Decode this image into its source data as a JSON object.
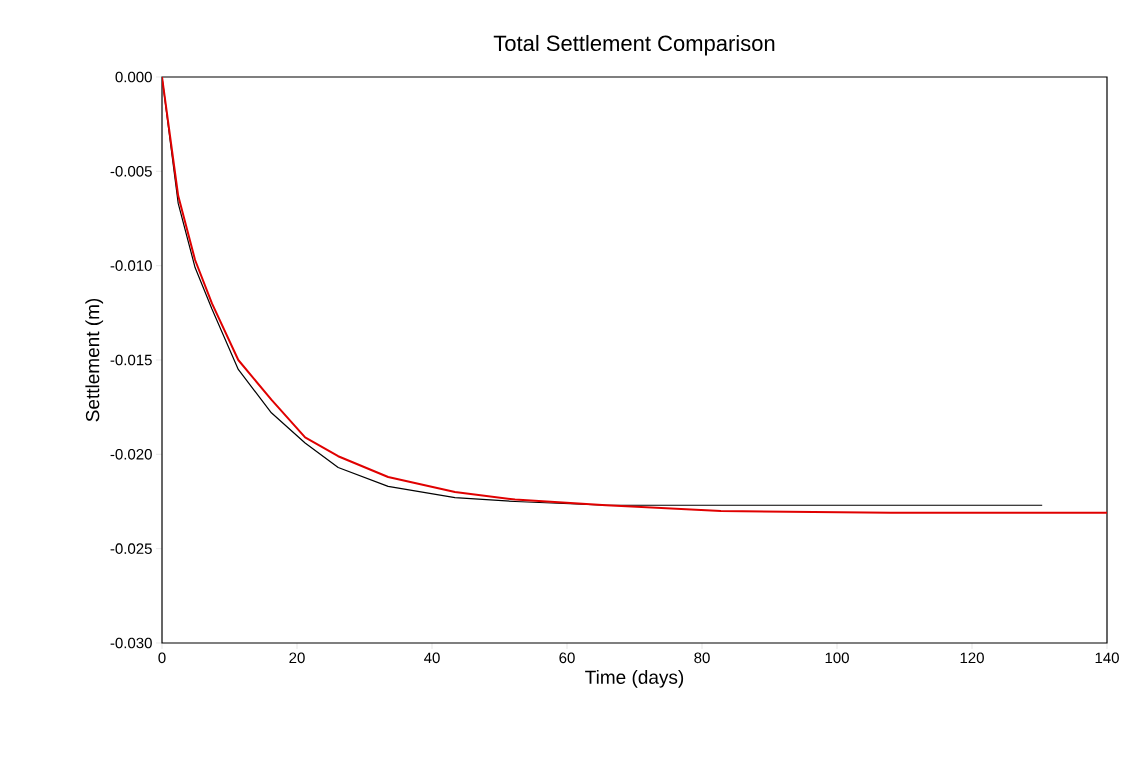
{
  "chart_data": {
    "type": "line",
    "title": "Total Settlement Comparison",
    "xlabel": "Time (days)",
    "ylabel": "Settlement (m)",
    "xlim": [
      0,
      140
    ],
    "ylim": [
      -0.03,
      0
    ],
    "xticks": [
      0,
      20,
      40,
      60,
      80,
      100,
      120,
      140
    ],
    "yticks": [
      {
        "value": 0,
        "label": "0.000"
      },
      {
        "value": -0.005,
        "label": "-0.005"
      },
      {
        "value": -0.01,
        "label": "-0.010"
      },
      {
        "value": -0.015,
        "label": "-0.015"
      },
      {
        "value": -0.02,
        "label": "-0.020"
      },
      {
        "value": -0.025,
        "label": "-0.025"
      },
      {
        "value": -0.03,
        "label": "-0.030"
      }
    ],
    "grid": false,
    "line_style": "solid",
    "marker": "none",
    "series": [
      {
        "color": "#000000",
        "x": [
          0,
          2.4,
          4.9,
          7.4,
          11.3,
          16.2,
          21.2,
          26.1,
          33.5,
          43.4,
          52.3,
          65.8,
          130.4
        ],
        "values": [
          0,
          -0.0067,
          -0.0101,
          -0.0123,
          -0.0155,
          -0.0178,
          -0.0194,
          -0.0207,
          -0.0217,
          -0.0223,
          -0.0225,
          -0.0227,
          -0.0227
        ]
      },
      {
        "color": "#e00000",
        "x": [
          0,
          2.4,
          4.9,
          7.4,
          11.3,
          16.2,
          21.2,
          26.1,
          33.5,
          43.4,
          52.3,
          65.8,
          82.8,
          108,
          140
        ],
        "values": [
          0,
          -0.0063,
          -0.0097,
          -0.012,
          -0.015,
          -0.0171,
          -0.0191,
          -0.0201,
          -0.0212,
          -0.022,
          -0.0224,
          -0.0227,
          -0.023,
          -0.0231,
          -0.0231
        ]
      }
    ]
  }
}
